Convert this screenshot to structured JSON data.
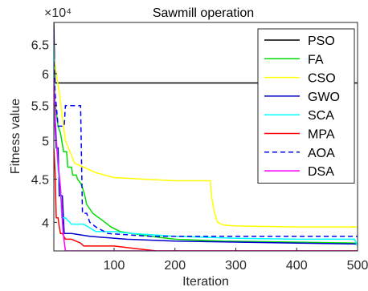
{
  "chart_data": {
    "type": "line",
    "title": "Sawmill operation",
    "xlabel": "Iteration",
    "ylabel": "Fitness value",
    "exponent_label": "×10⁴",
    "xlim": [
      1,
      500
    ],
    "ylim": [
      3.7,
      6.9
    ],
    "y_scale": "log",
    "x_ticks": [
      100,
      200,
      300,
      400,
      500
    ],
    "x_tick_labels": [
      "100",
      "200",
      "300",
      "400",
      "500"
    ],
    "y_ticks": [
      4,
      4.5,
      5,
      5.5,
      6,
      6.5
    ],
    "y_tick_labels": [
      "4",
      "4.5",
      "5",
      "5.5",
      "6",
      "6.5"
    ],
    "grid": false,
    "legend_position": "top-right",
    "series": [
      {
        "name": "PSO",
        "color": "#000000",
        "dash": "solid",
        "x": [
          1,
          2,
          3,
          500
        ],
        "y": [
          6.9,
          6.2,
          5.85,
          5.85
        ]
      },
      {
        "name": "FA",
        "color": "#00dd00",
        "dash": "solid",
        "x": [
          1,
          3,
          5,
          8,
          12,
          15,
          17,
          22,
          24,
          30,
          32,
          38,
          40,
          45,
          48,
          52,
          55,
          60,
          65,
          75,
          85,
          95,
          110,
          160,
          200,
          280,
          500
        ],
        "y": [
          6.1,
          5.55,
          5.4,
          5.2,
          5.1,
          4.95,
          4.85,
          4.85,
          4.65,
          4.65,
          4.55,
          4.55,
          4.5,
          4.45,
          4.4,
          4.3,
          4.2,
          4.15,
          4.1,
          4.05,
          4.0,
          3.95,
          3.9,
          3.85,
          3.82,
          3.8,
          3.78
        ]
      },
      {
        "name": "CSO",
        "color": "#ffff00",
        "dash": "solid",
        "x": [
          1,
          5,
          10,
          14,
          20,
          25,
          35,
          50,
          70,
          100,
          150,
          200,
          258,
          260,
          265,
          270,
          280,
          300,
          400,
          500
        ],
        "y": [
          6.3,
          6.0,
          5.7,
          5.4,
          5.0,
          4.9,
          4.7,
          4.65,
          4.58,
          4.52,
          4.5,
          4.48,
          4.48,
          4.3,
          4.1,
          4.0,
          3.97,
          3.96,
          3.95,
          3.95
        ]
      },
      {
        "name": "GWO",
        "color": "#0000cc",
        "dash": "solid",
        "x": [
          1,
          3,
          5,
          8,
          10,
          15,
          18,
          30,
          60,
          120,
          200,
          300,
          400,
          500
        ],
        "y": [
          6.8,
          5.2,
          4.9,
          4.9,
          4.3,
          4.3,
          3.88,
          3.88,
          3.85,
          3.82,
          3.8,
          3.79,
          3.78,
          3.77
        ]
      },
      {
        "name": "SCA",
        "color": "#00ffff",
        "dash": "solid",
        "x": [
          1,
          3,
          5,
          8,
          12,
          14,
          20,
          30,
          50,
          70,
          100,
          130,
          200,
          300,
          400,
          495,
          500
        ],
        "y": [
          6.5,
          5.3,
          5.1,
          4.6,
          4.4,
          4.05,
          4.05,
          3.98,
          3.98,
          3.9,
          3.9,
          3.88,
          3.85,
          3.83,
          3.82,
          3.82,
          3.75
        ]
      },
      {
        "name": "MPA",
        "color": "#ff0000",
        "dash": "solid",
        "x": [
          1,
          3,
          5,
          8,
          10,
          12,
          15,
          20,
          30,
          45,
          50,
          100,
          140,
          170,
          200,
          500
        ],
        "y": [
          4.9,
          4.6,
          4.05,
          4.05,
          3.95,
          3.88,
          3.88,
          3.82,
          3.82,
          3.78,
          3.75,
          3.75,
          3.72,
          3.7,
          3.7,
          3.7
        ]
      },
      {
        "name": "AOA",
        "color": "#0000ff",
        "dash": "dashed",
        "x": [
          1,
          3,
          5,
          8,
          11,
          18,
          20,
          30,
          34,
          45,
          48,
          55,
          60,
          70,
          90,
          160,
          500
        ],
        "y": [
          6.2,
          5.7,
          5.5,
          5.2,
          5.2,
          5.2,
          5.5,
          5.5,
          5.5,
          5.5,
          4.1,
          4.1,
          4.0,
          3.95,
          3.88,
          3.85,
          3.85
        ]
      },
      {
        "name": "DSA",
        "color": "#ff00ff",
        "dash": "solid",
        "x": [
          1,
          3,
          5,
          8,
          12,
          16,
          20,
          30,
          40,
          500
        ],
        "y": [
          5.9,
          5.4,
          5.0,
          4.7,
          4.4,
          3.9,
          3.7,
          3.7,
          3.7,
          3.7
        ]
      }
    ]
  }
}
